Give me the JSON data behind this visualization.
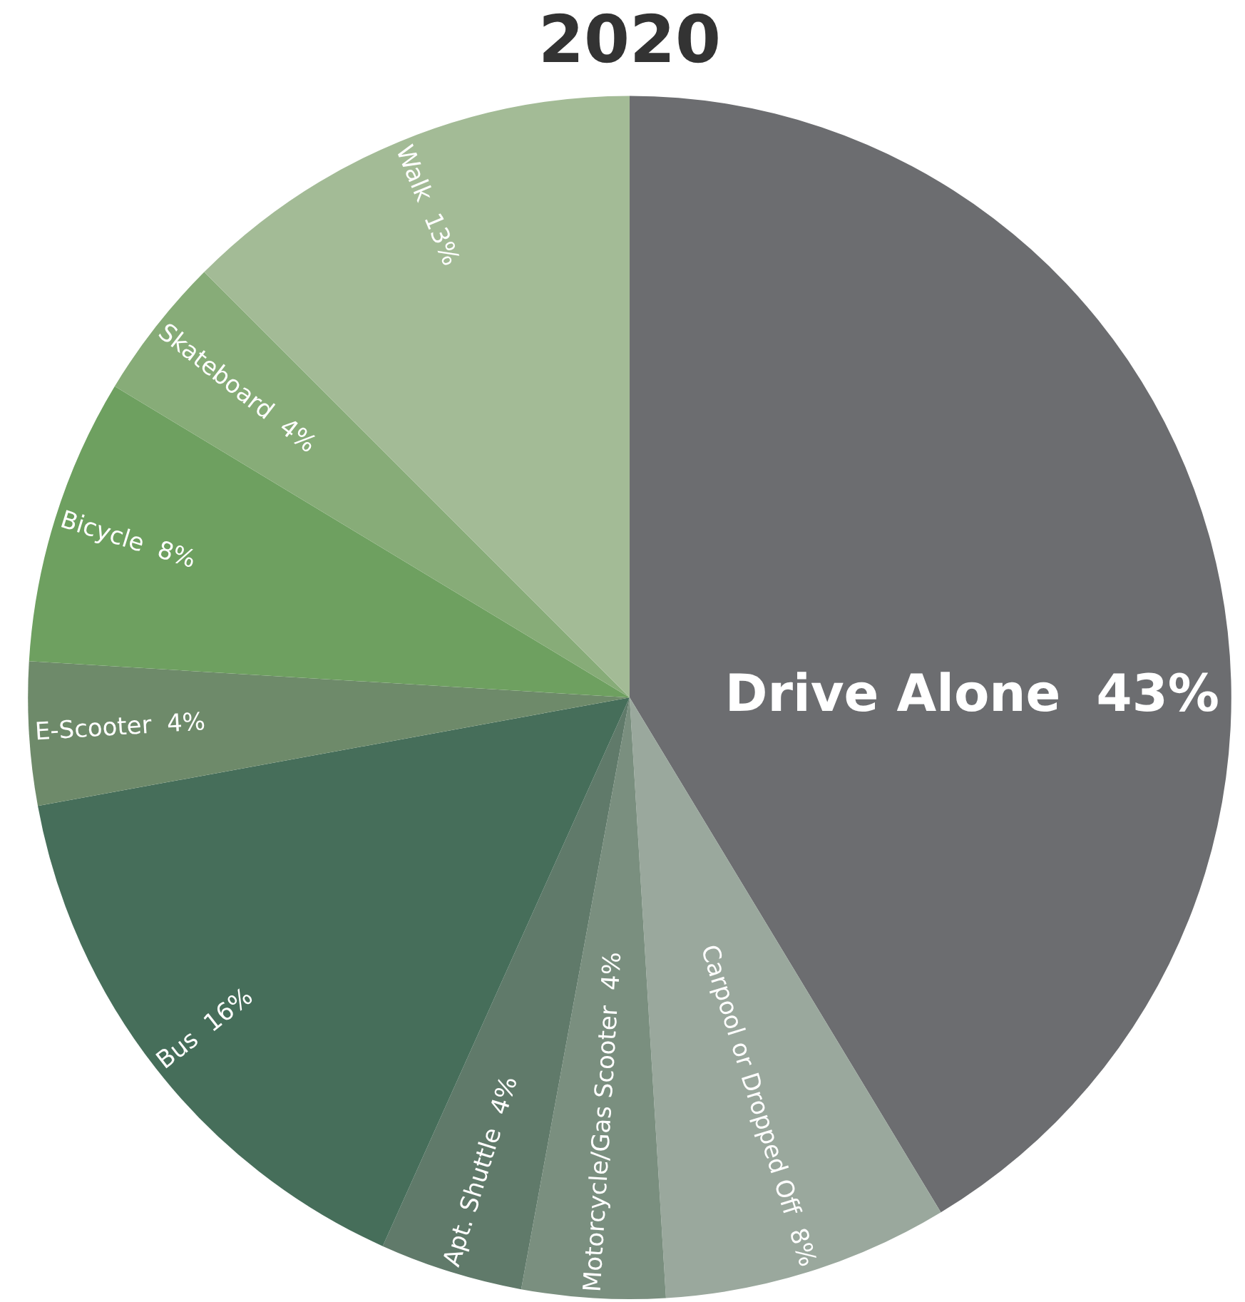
{
  "chart_data": {
    "type": "pie",
    "title": "2020",
    "categories": [
      "Drive Alone",
      "Carpool or Dropped Off",
      "Motorcycle/Gas Scooter",
      "Apt. Shuttle",
      "Bus",
      "E-Scooter",
      "Bicycle",
      "Skateboard",
      "Walk"
    ],
    "values": [
      43,
      8,
      4,
      4,
      16,
      4,
      8,
      4,
      13
    ],
    "value_labels": [
      "43%",
      "8%",
      "4%",
      "4%",
      "16%",
      "4%",
      "8%",
      "4%",
      "13%"
    ],
    "colors": [
      "#6c6d70",
      "#9aa89d",
      "#7a8f7f",
      "#607a6a",
      "#466e5a",
      "#6e8a6a",
      "#6ea060",
      "#87ac78",
      "#a3bb96"
    ],
    "legend": false
  }
}
